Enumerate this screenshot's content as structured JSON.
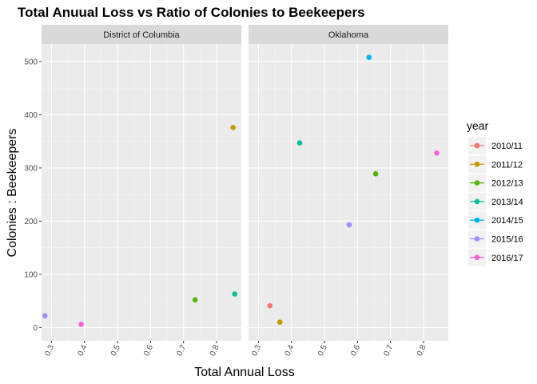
{
  "chart_data": {
    "type": "scatter",
    "title": "Total Anuual Loss vs Ratio of Colonies to Beekeepers",
    "xlabel": "Total Annual Loss",
    "ylabel": "Colonies : Beekeepers",
    "xlim": [
      0.27,
      0.875
    ],
    "ylim": [
      -25,
      533
    ],
    "x_ticks": [
      0.3,
      0.4,
      0.5,
      0.6,
      0.7,
      0.8
    ],
    "y_ticks": [
      0,
      100,
      200,
      300,
      400,
      500
    ],
    "grid": true,
    "legend": {
      "title": "year",
      "position": "right",
      "entries": [
        {
          "label": "2010/11",
          "color": "#F8766D"
        },
        {
          "label": "2011/12",
          "color": "#C49A00"
        },
        {
          "label": "2012/13",
          "color": "#53B400"
        },
        {
          "label": "2013/14",
          "color": "#00C094"
        },
        {
          "label": "2014/15",
          "color": "#00B6EB"
        },
        {
          "label": "2015/16",
          "color": "#A58AFF"
        },
        {
          "label": "2016/17",
          "color": "#FB61D7"
        }
      ]
    },
    "facets": [
      {
        "name": "District of Columbia",
        "points": [
          {
            "x": 0.28,
            "y": 22,
            "year": "2015/16"
          },
          {
            "x": 0.39,
            "y": 6,
            "year": "2016/17"
          },
          {
            "x": 0.735,
            "y": 52,
            "year": "2012/13"
          },
          {
            "x": 0.855,
            "y": 63,
            "year": "2013/14"
          },
          {
            "x": 0.85,
            "y": 376,
            "year": "2011/12"
          }
        ]
      },
      {
        "name": "Oklahoma",
        "points": [
          {
            "x": 0.335,
            "y": 41,
            "year": "2010/11"
          },
          {
            "x": 0.365,
            "y": 10,
            "year": "2011/12"
          },
          {
            "x": 0.425,
            "y": 347,
            "year": "2013/14"
          },
          {
            "x": 0.575,
            "y": 193,
            "year": "2015/16"
          },
          {
            "x": 0.635,
            "y": 508,
            "year": "2014/15"
          },
          {
            "x": 0.655,
            "y": 289,
            "year": "2012/13"
          },
          {
            "x": 0.84,
            "y": 328,
            "year": "2016/17"
          }
        ]
      }
    ]
  }
}
